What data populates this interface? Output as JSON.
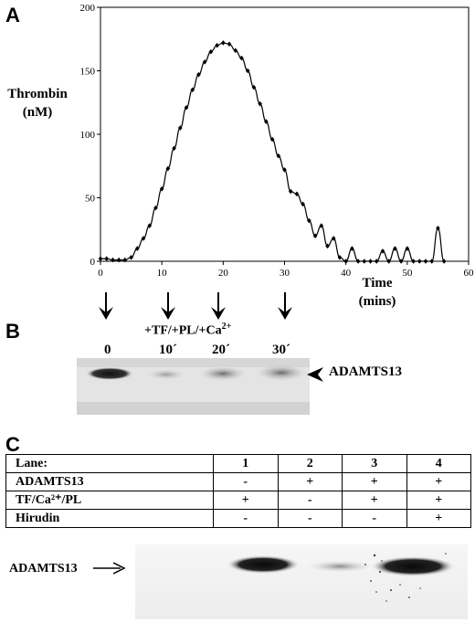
{
  "panels": {
    "a": "A",
    "b": "B",
    "c": "C"
  },
  "chart_data": {
    "type": "line",
    "ylabel_line1": "Thrombin",
    "ylabel_line2": "(nM)",
    "xlabel_line1": "Time",
    "xlabel_line2": "(mins)",
    "xlim": [
      0,
      60
    ],
    "ylim": [
      0,
      200
    ],
    "xticks": [
      0,
      10,
      20,
      30,
      40,
      50,
      60
    ],
    "yticks": [
      0,
      50,
      100,
      150,
      200
    ],
    "x": [
      0,
      1,
      2,
      3,
      4,
      5,
      6,
      7,
      8,
      9,
      10,
      11,
      12,
      13,
      14,
      15,
      16,
      17,
      18,
      19,
      20,
      21,
      22,
      23,
      24,
      25,
      26,
      27,
      28,
      29,
      30,
      31,
      32,
      33,
      34,
      35,
      36,
      37,
      38,
      39,
      40,
      41,
      42,
      43,
      44,
      45,
      46,
      47,
      48,
      49,
      50,
      51,
      52,
      53,
      54,
      55,
      56
    ],
    "y": [
      2,
      2,
      1,
      1,
      1,
      3,
      10,
      18,
      28,
      42,
      57,
      73,
      89,
      105,
      121,
      135,
      147,
      157,
      165,
      170,
      172,
      171,
      166,
      160,
      150,
      137,
      124,
      110,
      96,
      83,
      72,
      55,
      53,
      45,
      32,
      20,
      28,
      12,
      18,
      3,
      0,
      10,
      0,
      0,
      0,
      0,
      8,
      0,
      10,
      0,
      10,
      0,
      0,
      0,
      0,
      26,
      0
    ]
  },
  "panel_b": {
    "arrow_times": [
      "0",
      "10",
      "20",
      "30"
    ],
    "condition": "+TF/+PL/+Ca",
    "condition_sup": "2+",
    "lanes": [
      "0",
      "10´",
      "20´",
      "30´"
    ],
    "band_label": "ADAMTS13"
  },
  "panel_c": {
    "header": [
      "Lane:",
      "1",
      "2",
      "3",
      "4"
    ],
    "rows": [
      [
        "ADAMTS13",
        "-",
        "+",
        "+",
        "+"
      ],
      [
        "TF/Ca²⁺/PL",
        "+",
        "-",
        "+",
        "+"
      ],
      [
        "Hirudin",
        "-",
        "-",
        "-",
        "+"
      ]
    ],
    "band_label": "ADAMTS13"
  }
}
